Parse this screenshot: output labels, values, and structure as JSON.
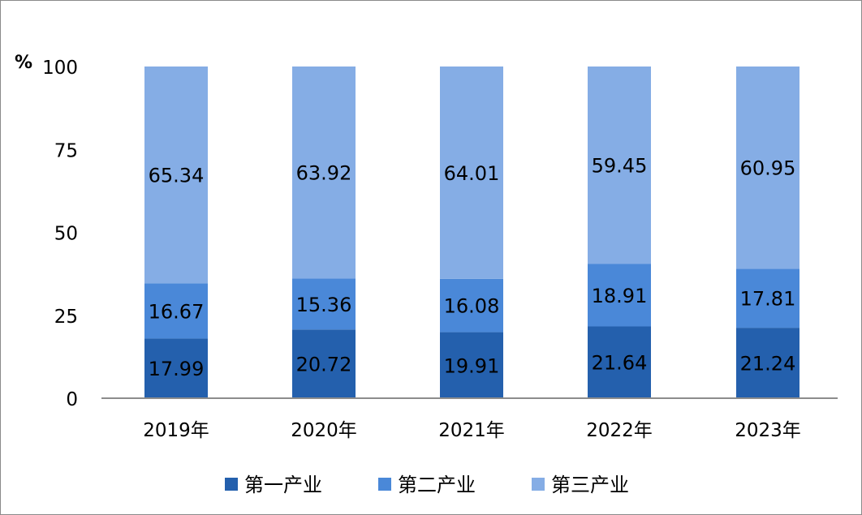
{
  "chart_data": {
    "type": "bar",
    "stacked": true,
    "title": "",
    "unit": "%",
    "ylim": [
      0,
      100
    ],
    "yticks": [
      0,
      25,
      50,
      75,
      100
    ],
    "grid": false,
    "legend_position": "bottom",
    "categories": [
      "2019年",
      "2020年",
      "2021年",
      "2022年",
      "2023年"
    ],
    "series": [
      {
        "name": "第一产业",
        "color": "#2460ad",
        "values": [
          17.99,
          20.72,
          19.91,
          21.64,
          21.24
        ]
      },
      {
        "name": "第二产业",
        "color": "#4a88d8",
        "values": [
          16.67,
          15.36,
          16.08,
          18.91,
          17.81
        ]
      },
      {
        "name": "第三产业",
        "color": "#85ade5",
        "values": [
          65.34,
          63.92,
          64.01,
          59.45,
          60.95
        ]
      }
    ]
  }
}
